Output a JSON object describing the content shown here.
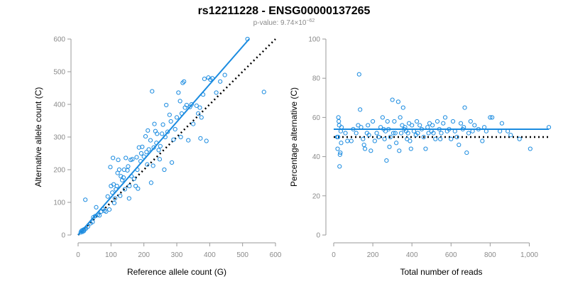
{
  "title": "rs12211228 - ENSG00000137265",
  "subtitle": "p-value: 9.74×10",
  "subtitle_exp": "−62",
  "colors": {
    "points": "#1a8be0",
    "fit": "#1a8be0",
    "reference": "#000000",
    "axis": "#9a9a9a"
  },
  "chart_data": [
    {
      "type": "scatter",
      "xlabel": "Reference allele count (G)",
      "ylabel": "Alternative allele count (C)",
      "xlim": [
        0,
        600
      ],
      "ylim": [
        0,
        600
      ],
      "xticks": [
        0,
        100,
        200,
        300,
        400,
        500,
        600
      ],
      "yticks": [
        0,
        100,
        200,
        300,
        400,
        500,
        600
      ],
      "xtick_labels": [
        "0",
        "100",
        "200",
        "300",
        "400",
        "500",
        "600"
      ],
      "ytick_labels": [
        "0",
        "100",
        "200",
        "300",
        "400",
        "500",
        "600"
      ],
      "grid": false,
      "points": [
        [
          8,
          8
        ],
        [
          10,
          12
        ],
        [
          12,
          14
        ],
        [
          14,
          10
        ],
        [
          16,
          16
        ],
        [
          18,
          13
        ],
        [
          20,
          18
        ],
        [
          24,
          20
        ],
        [
          22,
          108
        ],
        [
          30,
          26
        ],
        [
          38,
          36
        ],
        [
          44,
          40
        ],
        [
          46,
          54
        ],
        [
          52,
          58
        ],
        [
          55,
          85
        ],
        [
          60,
          62
        ],
        [
          65,
          60
        ],
        [
          70,
          72
        ],
        [
          75,
          80
        ],
        [
          80,
          74
        ],
        [
          85,
          72
        ],
        [
          90,
          118
        ],
        [
          95,
          78
        ],
        [
          98,
          208
        ],
        [
          100,
          150
        ],
        [
          104,
          130
        ],
        [
          106,
          236
        ],
        [
          108,
          155
        ],
        [
          110,
          98
        ],
        [
          112,
          112
        ],
        [
          115,
          140
        ],
        [
          118,
          150
        ],
        [
          120,
          190
        ],
        [
          122,
          230
        ],
        [
          125,
          200
        ],
        [
          128,
          120
        ],
        [
          130,
          180
        ],
        [
          134,
          168
        ],
        [
          138,
          176
        ],
        [
          140,
          200
        ],
        [
          142,
          140
        ],
        [
          145,
          236
        ],
        [
          150,
          198
        ],
        [
          152,
          210
        ],
        [
          155,
          112
        ],
        [
          156,
          150
        ],
        [
          160,
          230
        ],
        [
          162,
          180
        ],
        [
          165,
          232
        ],
        [
          170,
          172
        ],
        [
          175,
          150
        ],
        [
          178,
          238
        ],
        [
          180,
          200
        ],
        [
          182,
          142
        ],
        [
          185,
          268
        ],
        [
          190,
          226
        ],
        [
          192,
          250
        ],
        [
          195,
          270
        ],
        [
          200,
          240
        ],
        [
          205,
          302
        ],
        [
          208,
          254
        ],
        [
          210,
          216
        ],
        [
          212,
          320
        ],
        [
          215,
          262
        ],
        [
          220,
          290
        ],
        [
          222,
          160
        ],
        [
          225,
          440
        ],
        [
          228,
          212
        ],
        [
          230,
          268
        ],
        [
          232,
          340
        ],
        [
          235,
          318
        ],
        [
          238,
          282
        ],
        [
          240,
          310
        ],
        [
          245,
          260
        ],
        [
          248,
          232
        ],
        [
          250,
          272
        ],
        [
          255,
          310
        ],
        [
          258,
          338
        ],
        [
          262,
          200
        ],
        [
          265,
          300
        ],
        [
          268,
          398
        ],
        [
          272,
          316
        ],
        [
          278,
          368
        ],
        [
          282,
          348
        ],
        [
          285,
          222
        ],
        [
          290,
          292
        ],
        [
          295,
          324
        ],
        [
          300,
          360
        ],
        [
          305,
          436
        ],
        [
          310,
          410
        ],
        [
          312,
          300
        ],
        [
          315,
          372
        ],
        [
          318,
          466
        ],
        [
          322,
          470
        ],
        [
          325,
          390
        ],
        [
          330,
          398
        ],
        [
          335,
          290
        ],
        [
          340,
          392
        ],
        [
          345,
          400
        ],
        [
          350,
          340
        ],
        [
          360,
          396
        ],
        [
          365,
          372
        ],
        [
          370,
          390
        ],
        [
          372,
          296
        ],
        [
          375,
          360
        ],
        [
          380,
          430
        ],
        [
          384,
          478
        ],
        [
          390,
          288
        ],
        [
          396,
          482
        ],
        [
          402,
          476
        ],
        [
          408,
          480
        ],
        [
          420,
          436
        ],
        [
          432,
          470
        ],
        [
          446,
          490
        ],
        [
          515,
          600
        ],
        [
          565,
          438
        ]
      ],
      "fit": {
        "x0": 0,
        "y0": 0,
        "x1": 520,
        "y1": 600
      },
      "reference": {
        "x0": 0,
        "y0": 0,
        "x1": 600,
        "y1": 600
      }
    },
    {
      "type": "scatter",
      "xlabel": "Total number of reads",
      "ylabel": "Percentage alternative (C)",
      "xlim": [
        0,
        1100
      ],
      "ylim": [
        0,
        100
      ],
      "xticks": [
        0,
        200,
        400,
        600,
        800,
        1000
      ],
      "yticks": [
        0,
        20,
        40,
        60,
        80,
        100
      ],
      "xtick_labels": [
        "0",
        "200",
        "400",
        "600",
        "800",
        "1,000"
      ],
      "ytick_labels": [
        "0",
        "20",
        "40",
        "60",
        "80",
        "100"
      ],
      "grid": false,
      "points": [
        [
          18,
          50
        ],
        [
          20,
          44
        ],
        [
          22,
          50
        ],
        [
          24,
          60
        ],
        [
          26,
          58
        ],
        [
          28,
          56
        ],
        [
          30,
          35
        ],
        [
          32,
          41
        ],
        [
          34,
          42
        ],
        [
          36,
          53
        ],
        [
          38,
          47
        ],
        [
          40,
          55
        ],
        [
          60,
          52
        ],
        [
          70,
          48
        ],
        [
          90,
          48
        ],
        [
          100,
          54
        ],
        [
          115,
          52
        ],
        [
          125,
          56
        ],
        [
          130,
          82
        ],
        [
          135,
          64
        ],
        [
          140,
          55
        ],
        [
          150,
          49
        ],
        [
          155,
          46
        ],
        [
          160,
          44
        ],
        [
          170,
          52
        ],
        [
          175,
          56
        ],
        [
          180,
          51
        ],
        [
          190,
          43
        ],
        [
          200,
          58
        ],
        [
          210,
          48
        ],
        [
          220,
          52
        ],
        [
          230,
          50
        ],
        [
          240,
          55
        ],
        [
          250,
          60
        ],
        [
          255,
          54
        ],
        [
          260,
          49
        ],
        [
          265,
          53
        ],
        [
          270,
          38
        ],
        [
          275,
          58
        ],
        [
          280,
          54
        ],
        [
          285,
          45
        ],
        [
          290,
          50
        ],
        [
          300,
          69
        ],
        [
          305,
          52
        ],
        [
          310,
          58
        ],
        [
          315,
          52
        ],
        [
          320,
          47
        ],
        [
          330,
          68
        ],
        [
          335,
          43
        ],
        [
          340,
          60
        ],
        [
          345,
          52
        ],
        [
          350,
          56
        ],
        [
          355,
          65
        ],
        [
          360,
          54
        ],
        [
          365,
          55
        ],
        [
          370,
          53
        ],
        [
          375,
          49
        ],
        [
          380,
          52
        ],
        [
          385,
          57
        ],
        [
          390,
          48
        ],
        [
          395,
          44
        ],
        [
          400,
          56
        ],
        [
          410,
          53
        ],
        [
          420,
          51
        ],
        [
          425,
          58
        ],
        [
          430,
          52
        ],
        [
          440,
          56
        ],
        [
          450,
          54
        ],
        [
          460,
          50
        ],
        [
          470,
          44
        ],
        [
          480,
          55
        ],
        [
          485,
          52
        ],
        [
          490,
          57
        ],
        [
          500,
          53
        ],
        [
          505,
          56
        ],
        [
          510,
          52
        ],
        [
          520,
          49
        ],
        [
          530,
          58
        ],
        [
          540,
          54
        ],
        [
          545,
          49
        ],
        [
          550,
          52
        ],
        [
          560,
          57
        ],
        [
          570,
          60
        ],
        [
          580,
          53
        ],
        [
          590,
          54
        ],
        [
          600,
          49
        ],
        [
          610,
          58
        ],
        [
          620,
          53
        ],
        [
          630,
          50
        ],
        [
          640,
          46
        ],
        [
          650,
          57
        ],
        [
          660,
          54
        ],
        [
          665,
          55
        ],
        [
          670,
          65
        ],
        [
          680,
          42
        ],
        [
          690,
          52
        ],
        [
          700,
          58
        ],
        [
          710,
          53
        ],
        [
          720,
          56
        ],
        [
          740,
          54
        ],
        [
          760,
          48
        ],
        [
          770,
          55
        ],
        [
          780,
          53
        ],
        [
          800,
          60
        ],
        [
          810,
          60
        ],
        [
          850,
          53
        ],
        [
          860,
          57
        ],
        [
          890,
          53
        ],
        [
          905,
          51
        ],
        [
          950,
          49
        ],
        [
          1005,
          44
        ],
        [
          1100,
          55
        ]
      ],
      "fit": {
        "x0": 0,
        "y0": 54,
        "x1": 1100,
        "y1": 54
      },
      "reference": {
        "x0": 0,
        "y0": 50,
        "x1": 1100,
        "y1": 50
      }
    }
  ]
}
